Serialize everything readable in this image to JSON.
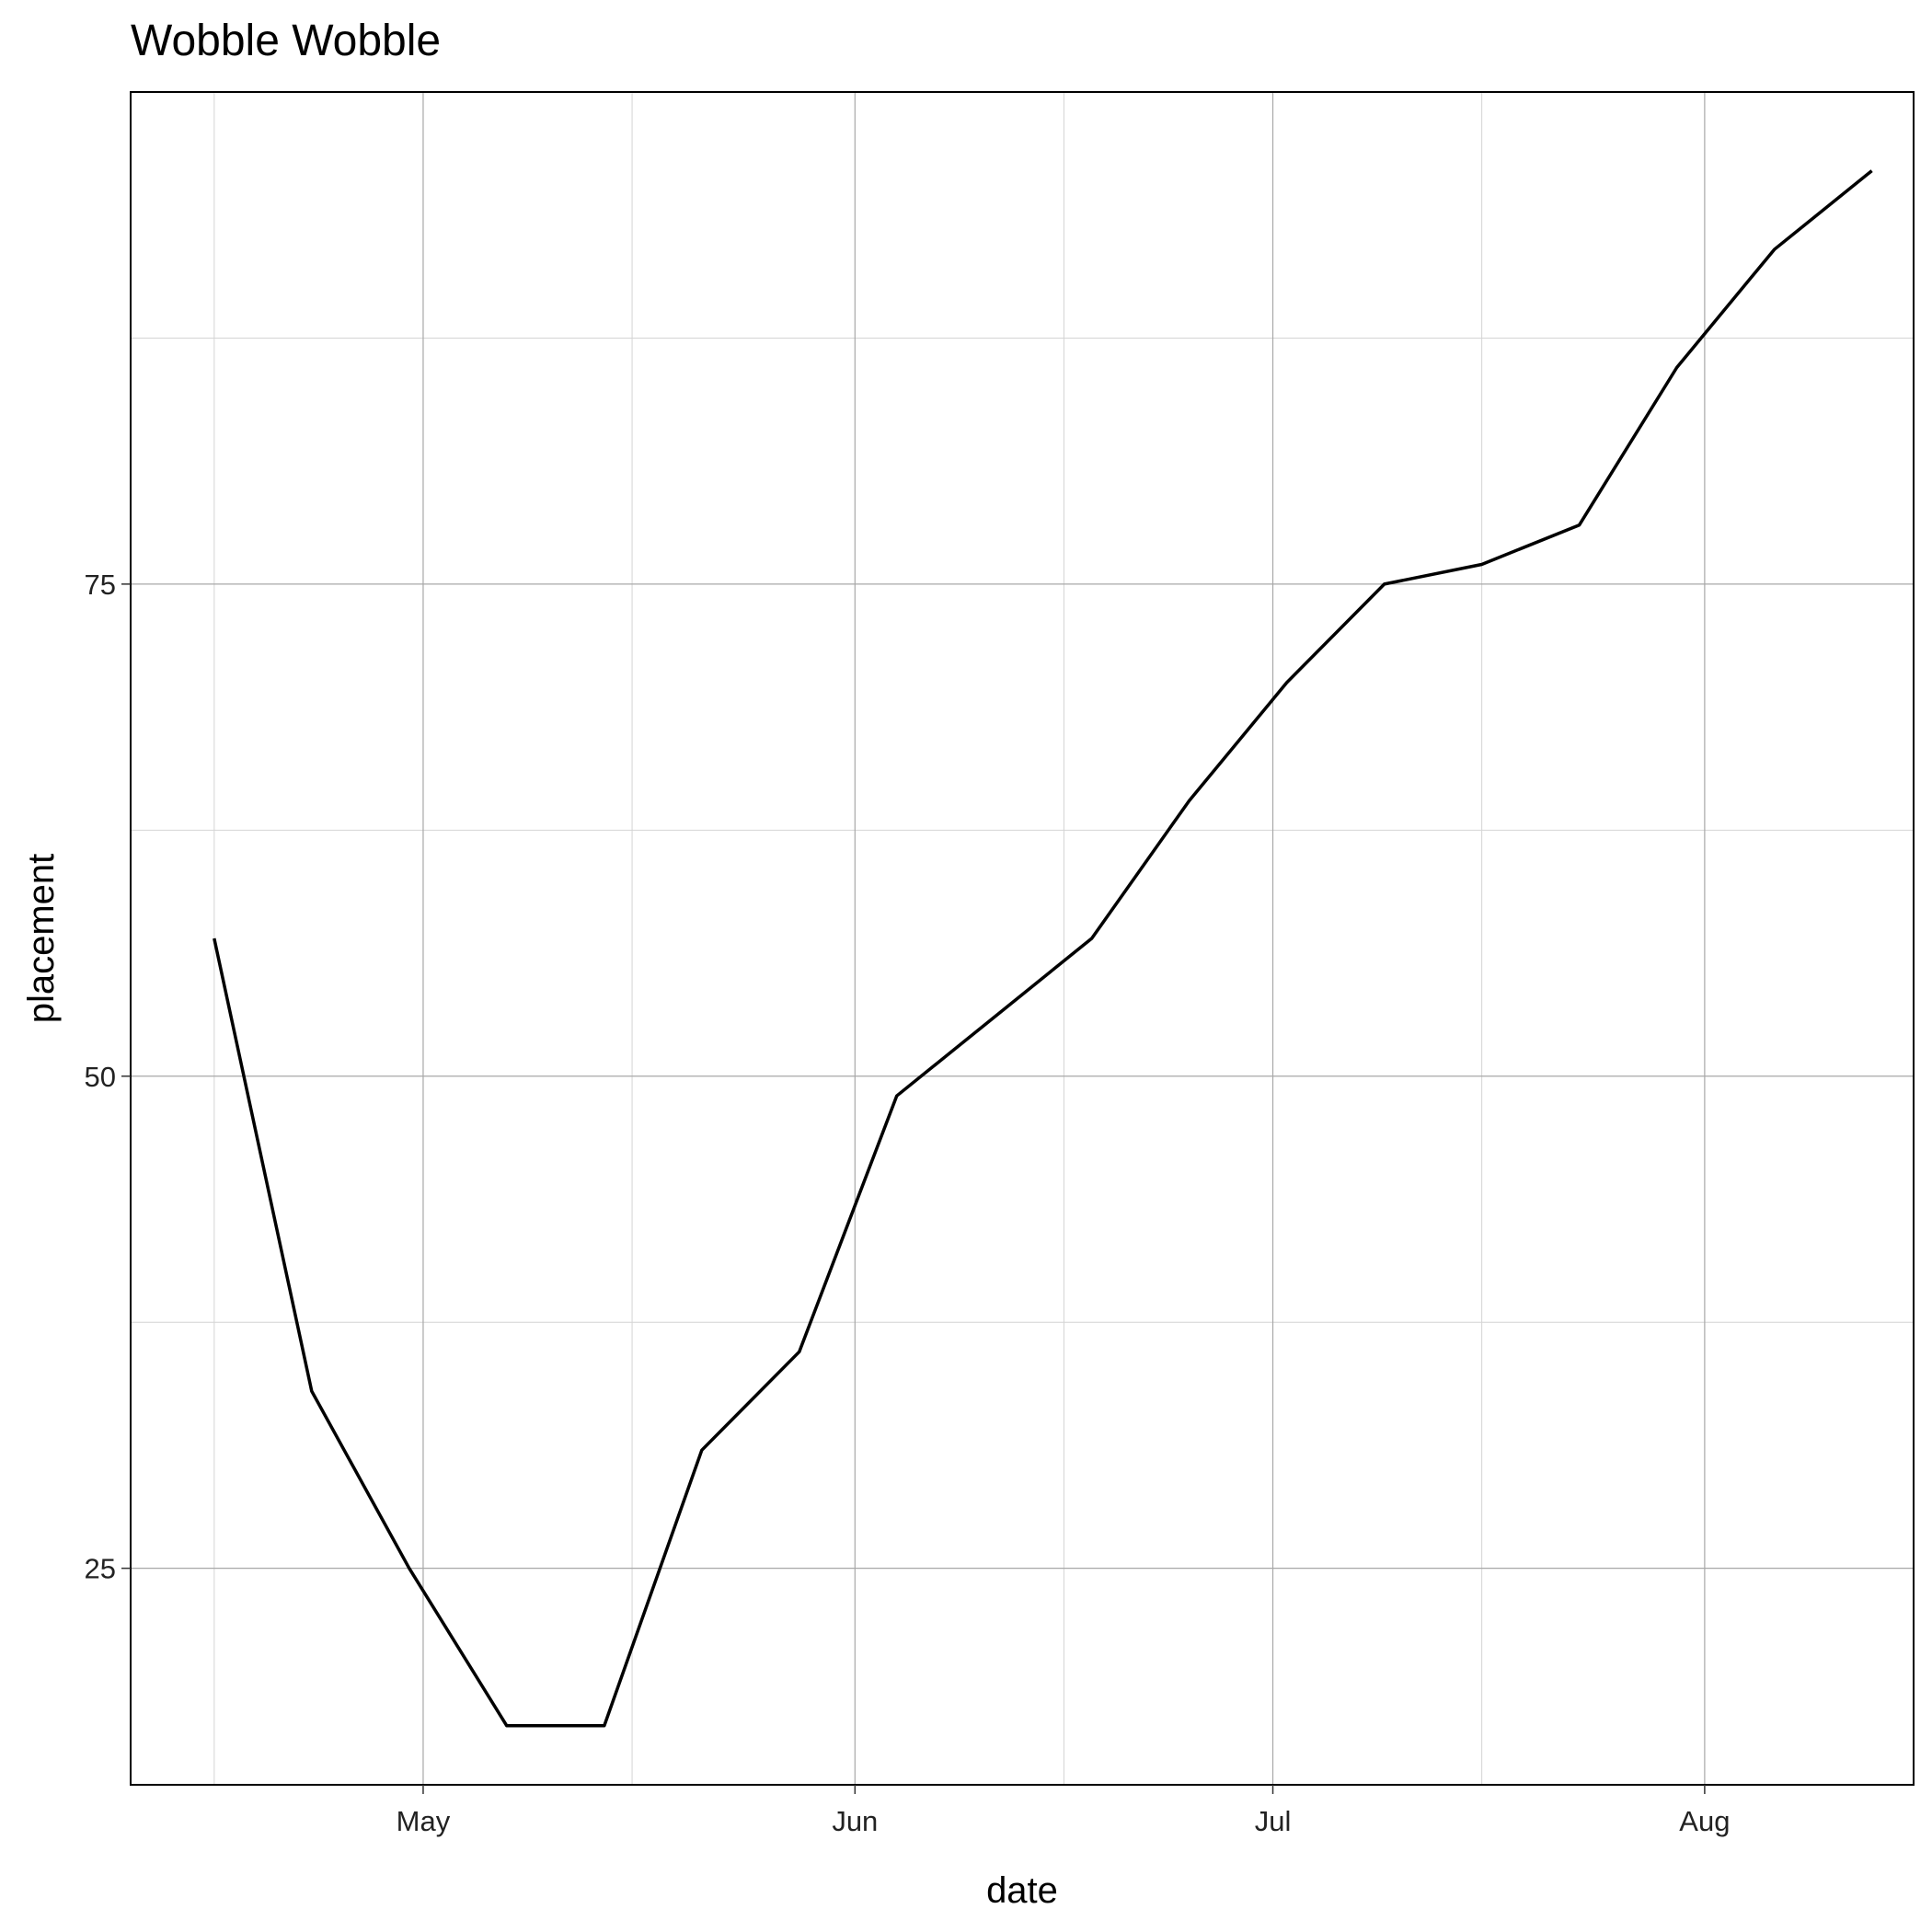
{
  "chart_data": {
    "type": "line",
    "title": "Wobble Wobble",
    "xlabel": "date",
    "ylabel": "placement",
    "xlim": [
      "2020-04-10",
      "2020-08-16"
    ],
    "ylim": [
      14,
      100
    ],
    "x_ticks": [
      {
        "date": "2020-05-01",
        "label": "May"
      },
      {
        "date": "2020-06-01",
        "label": "Jun"
      },
      {
        "date": "2020-07-01",
        "label": "Jul"
      },
      {
        "date": "2020-08-01",
        "label": "Aug"
      }
    ],
    "x_minor_ticks": [
      "2020-04-16",
      "2020-05-16",
      "2020-06-16",
      "2020-07-16",
      "2020-08-16"
    ],
    "y_ticks": [
      25,
      50,
      75
    ],
    "y_minor_ticks": [
      37.5,
      62.5,
      87.5
    ],
    "grid": true,
    "colors": {
      "line": "#000000",
      "panel_border": "#000000",
      "background": "#ffffff"
    },
    "series": [
      {
        "name": "placement",
        "x": [
          "2020-04-16",
          "2020-04-23",
          "2020-04-30",
          "2020-05-07",
          "2020-05-14",
          "2020-05-21",
          "2020-05-28",
          "2020-06-04",
          "2020-06-11",
          "2020-06-18",
          "2020-06-25",
          "2020-07-02",
          "2020-07-09",
          "2020-07-16",
          "2020-07-23",
          "2020-07-30",
          "2020-08-06",
          "2020-08-13"
        ],
        "y": [
          57,
          34,
          25,
          17,
          17,
          31,
          36,
          49,
          53,
          57,
          64,
          70,
          75,
          76,
          78,
          86,
          92,
          96
        ]
      }
    ]
  }
}
